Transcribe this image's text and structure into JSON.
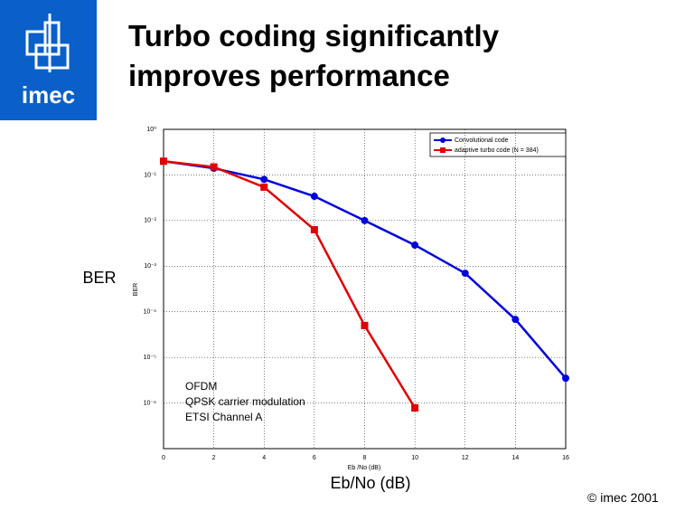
{
  "logo": "imec",
  "footer": "© imec 2001",
  "chart_data": {
    "type": "line",
    "title": "Turbo coding significantly improves performance",
    "ylabel": "BER",
    "xlabel": "Eb/No (dB)",
    "axis_ylabel": "BER",
    "axis_xlabel": "Eb /No (dB)",
    "x": [
      0,
      2,
      4,
      6,
      8,
      10,
      12,
      14,
      16
    ],
    "series": [
      {
        "name": "Convolutional code",
        "color": "#0000e0",
        "values": [
          0.2,
          0.14,
          0.08,
          0.034,
          0.01,
          0.0029,
          0.0007,
          6.8e-05,
          3.5e-06
        ]
      },
      {
        "name": "adaptive turbo code (N = 384)",
        "color": "#e00000",
        "values": [
          0.2,
          0.15,
          0.054,
          0.0063,
          5e-05,
          7.8e-07,
          null,
          null,
          null
        ]
      }
    ],
    "xlim": [
      0,
      16
    ],
    "xticks": [
      0,
      2,
      4,
      6,
      8,
      10,
      12,
      14,
      16
    ],
    "ylim": [
      1e-07,
      1
    ],
    "yticks": [
      {
        "value": 1,
        "label": "10⁰"
      },
      {
        "value": 0.1,
        "label": "10⁻¹"
      },
      {
        "value": 0.01,
        "label": "10⁻²"
      },
      {
        "value": 0.001,
        "label": "10⁻³"
      },
      {
        "value": 0.0001,
        "label": "10⁻⁴"
      },
      {
        "value": 1e-05,
        "label": "10⁻⁵"
      },
      {
        "value": 1e-06,
        "label": "10⁻⁶"
      }
    ],
    "log_y": true,
    "grid": true,
    "legend": "upper right",
    "annotations": [
      "OFDM",
      "QPSK carrier modulation",
      "ETSI Channel A"
    ]
  }
}
